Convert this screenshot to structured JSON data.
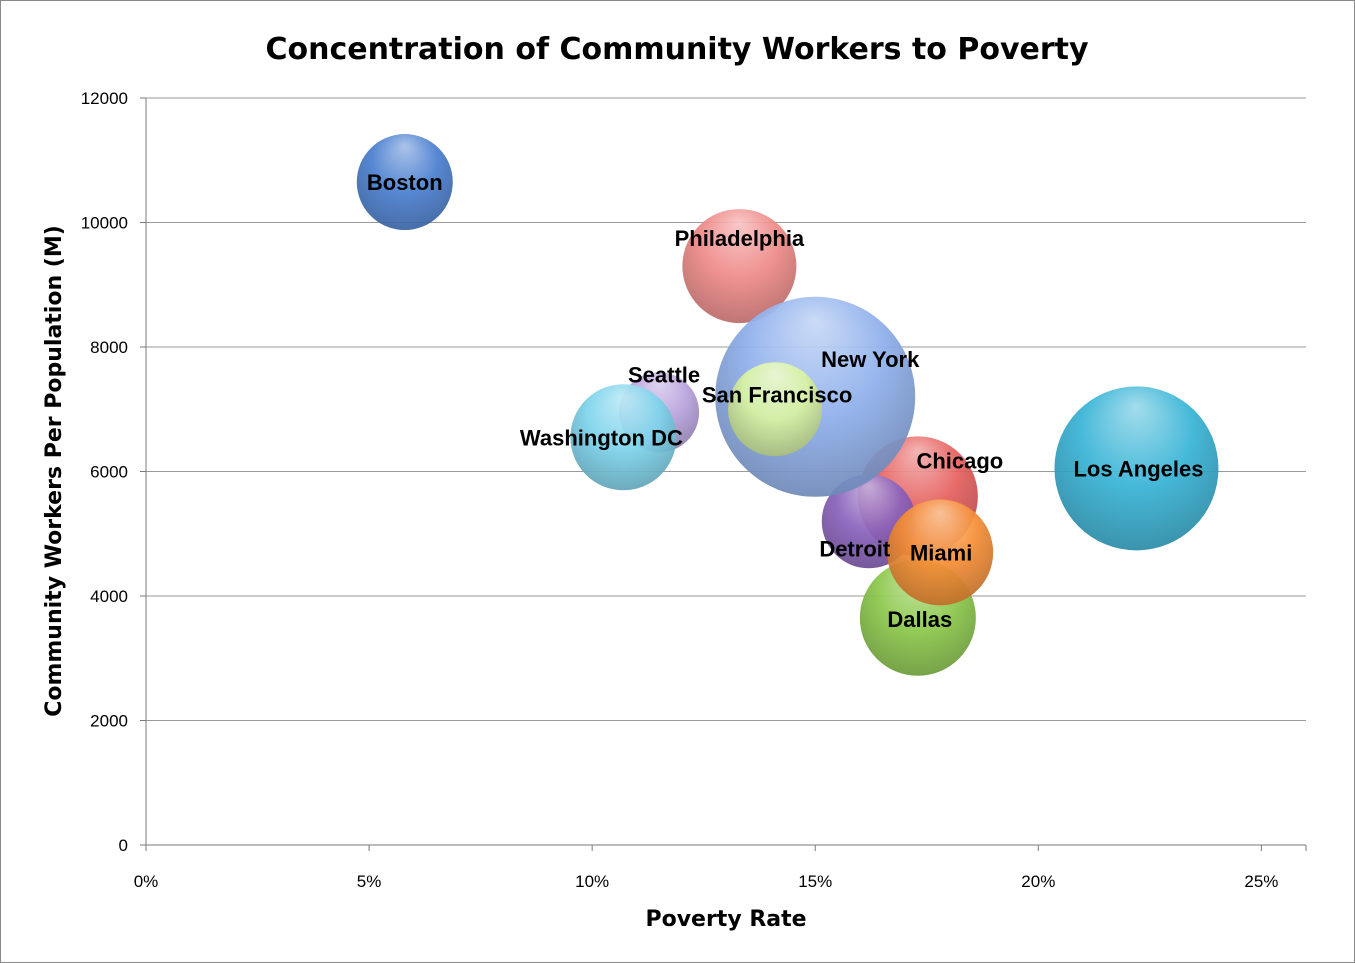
{
  "chart_data": {
    "type": "bubble",
    "title": "Concentration of Community Workers to Poverty",
    "xlabel": "Poverty Rate",
    "ylabel": "Community Workers Per Population (M)",
    "xlim": [
      0,
      0.26
    ],
    "ylim": [
      0,
      12000
    ],
    "x_ticks": [
      0,
      0.05,
      0.1,
      0.15,
      0.2,
      0.25
    ],
    "x_tick_labels": [
      "0%",
      "5%",
      "10%",
      "15%",
      "20%",
      "25%"
    ],
    "y_ticks": [
      0,
      2000,
      4000,
      6000,
      8000,
      10000,
      12000
    ],
    "y_tick_labels": [
      "0",
      "2000",
      "4000",
      "6000",
      "8000",
      "10000",
      "12000"
    ],
    "grid": "horizontal",
    "legend": "none",
    "points": [
      {
        "name": "Boston",
        "x": 0.058,
        "y": 10650,
        "size": 0.48,
        "color": "#4a7fd0",
        "label_dx": 0,
        "label_dy": 0
      },
      {
        "name": "Philadelphia",
        "x": 0.133,
        "y": 9300,
        "size": 0.57,
        "color": "#ee8a88",
        "label_dx": 0,
        "label_dy": -22
      },
      {
        "name": "Seattle",
        "x": 0.115,
        "y": 6950,
        "size": 0.4,
        "color": "#b9a3de",
        "label_dx": 0,
        "label_dy": 0
      },
      {
        "name": "Washington DC",
        "x": 0.107,
        "y": 6550,
        "size": 0.53,
        "color": "#7ed4ec",
        "label_dx": 0,
        "label_dy": 0
      },
      {
        "name": "Chicago",
        "x": 0.173,
        "y": 5600,
        "size": 0.6,
        "color": "#e5605e",
        "label_dx": 0,
        "label_dy": 0
      },
      {
        "name": "Los Angeles",
        "x": 0.222,
        "y": 6050,
        "size": 0.82,
        "color": "#38b4d6",
        "label_dx": 0,
        "label_dy": 0
      },
      {
        "name": "Detroit",
        "x": 0.162,
        "y": 5200,
        "size": 0.47,
        "color": "#8a62bc",
        "label_dx": 0,
        "label_dy": 0
      },
      {
        "name": "Dallas",
        "x": 0.173,
        "y": 3650,
        "size": 0.58,
        "color": "#8cc84b",
        "label_dx": 0,
        "label_dy": 0
      },
      {
        "name": "New York",
        "x": 0.15,
        "y": 7200,
        "size": 1.0,
        "color": "#8fb0ec",
        "label_dx": 0,
        "label_dy": 0
      },
      {
        "name": "Miami",
        "x": 0.178,
        "y": 4700,
        "size": 0.53,
        "color": "#f68e36",
        "label_dx": 0,
        "label_dy": 0
      },
      {
        "name": "San Francisco",
        "x": 0.141,
        "y": 7000,
        "size": 0.47,
        "color": "#d9f3a2",
        "label_dx": 0,
        "label_dy": 0
      }
    ]
  }
}
